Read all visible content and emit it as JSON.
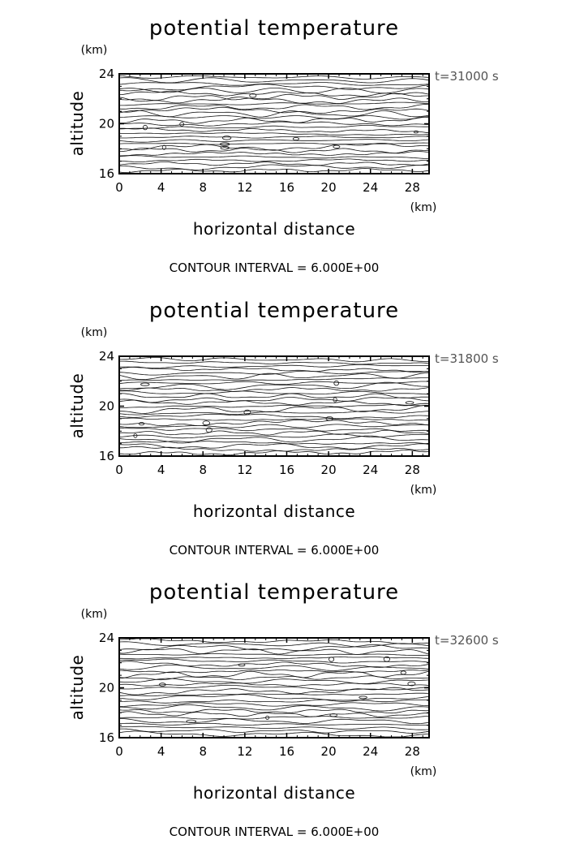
{
  "chart_data": [
    {
      "type": "contour",
      "title": "potential temperature",
      "xlabel": "horizontal distance",
      "ylabel": "altitude",
      "x_unit": "(km)",
      "y_unit": "(km)",
      "time_label": "t=31000 s",
      "contour_interval_text": "CONTOUR INTERVAL = 6.000E+00",
      "xlim": [
        0,
        29.6
      ],
      "ylim": [
        16,
        24
      ],
      "x_ticks": [
        0,
        4,
        8,
        12,
        16,
        20,
        24,
        28
      ],
      "y_ticks": [
        16,
        20,
        24
      ]
    },
    {
      "type": "contour",
      "title": "potential temperature",
      "xlabel": "horizontal distance",
      "ylabel": "altitude",
      "x_unit": "(km)",
      "y_unit": "(km)",
      "time_label": "t=31800 s",
      "contour_interval_text": "CONTOUR INTERVAL = 6.000E+00",
      "xlim": [
        0,
        29.6
      ],
      "ylim": [
        16,
        24
      ],
      "x_ticks": [
        0,
        4,
        8,
        12,
        16,
        20,
        24,
        28
      ],
      "y_ticks": [
        16,
        20,
        24
      ]
    },
    {
      "type": "contour",
      "title": "potential temperature",
      "xlabel": "horizontal distance",
      "ylabel": "altitude",
      "x_unit": "(km)",
      "y_unit": "(km)",
      "time_label": "t=32600 s",
      "contour_interval_text": "CONTOUR INTERVAL = 6.000E+00",
      "xlim": [
        0,
        29.6
      ],
      "ylim": [
        16,
        24
      ],
      "x_ticks": [
        0,
        4,
        8,
        12,
        16,
        20,
        24,
        28
      ],
      "y_ticks": [
        16,
        20,
        24
      ]
    }
  ]
}
